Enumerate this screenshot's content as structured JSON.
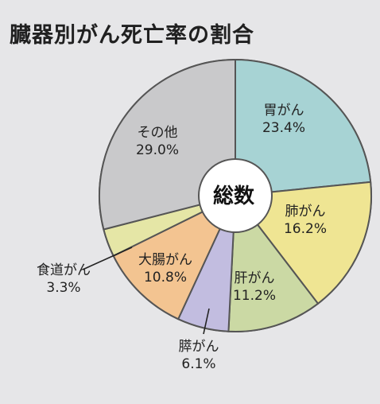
{
  "chart_data": {
    "type": "pie",
    "title": "臓器別がん死亡率の割合",
    "center_label": "総数",
    "slices": [
      {
        "name": "胃がん",
        "value": 23.4,
        "display": "23.4%",
        "color": "#a7d3d4"
      },
      {
        "name": "肺がん",
        "value": 16.2,
        "display": "16.2%",
        "color": "#efe593"
      },
      {
        "name": "肝がん",
        "value": 11.2,
        "display": "11.2%",
        "color": "#cbd9a4"
      },
      {
        "name": "膵がん",
        "value": 6.1,
        "display": "6.1%",
        "color": "#c2bde0"
      },
      {
        "name": "大腸がん",
        "value": 10.8,
        "display": "10.8%",
        "color": "#f3c491"
      },
      {
        "name": "食道がん",
        "value": 3.3,
        "display": "3.3%",
        "color": "#e5e6a6"
      },
      {
        "name": "その他",
        "value": 29.0,
        "display": "29.0%",
        "color": "#c9c9cb"
      }
    ]
  }
}
